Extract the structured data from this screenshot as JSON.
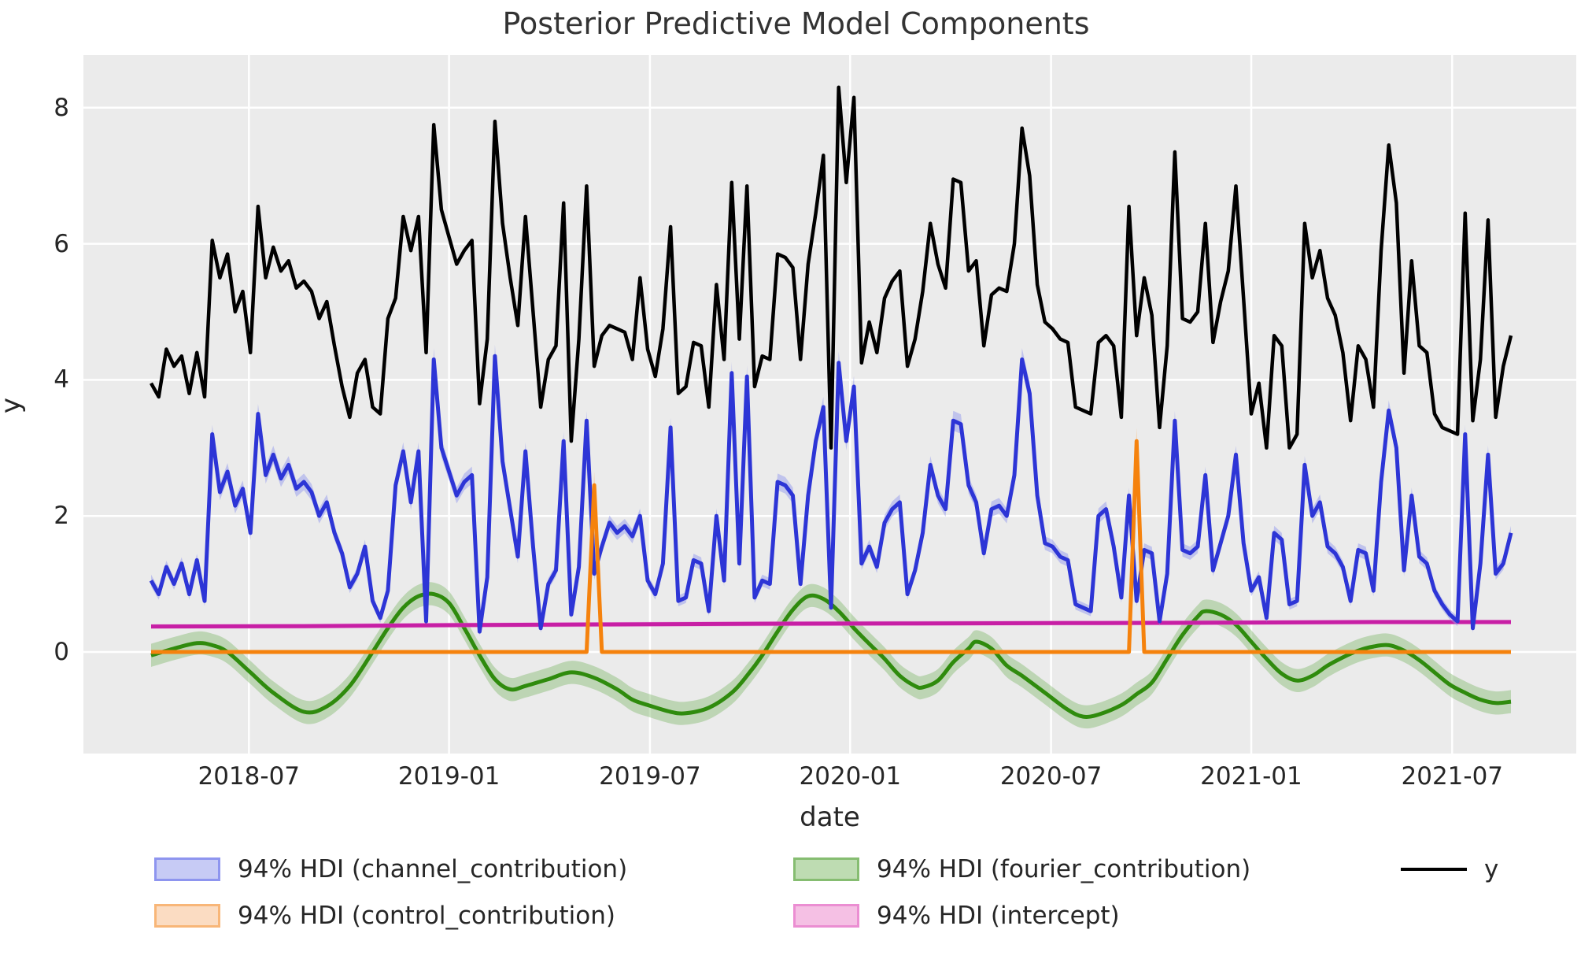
{
  "title": "Posterior Predictive Model Components",
  "axes": {
    "xlabel": "date",
    "ylabel": "y",
    "y_tick_labels": [
      "0",
      "2",
      "4",
      "6",
      "8"
    ],
    "x_tick_labels": [
      "2018-07",
      "2019-01",
      "2019-07",
      "2020-01",
      "2020-07",
      "2021-01",
      "2021-07"
    ]
  },
  "legend": [
    {
      "label": "94% HDI (channel_contribution)",
      "swatch_fill": "#c7cbf5",
      "swatch_border": "#8e95ef",
      "kind": "patch"
    },
    {
      "label": "94% HDI (control_contribution)",
      "swatch_fill": "#fbdcc2",
      "swatch_border": "#f8b678",
      "kind": "patch"
    },
    {
      "label": "94% HDI (fourier_contribution)",
      "swatch_fill": "#bedcb2",
      "swatch_border": "#86bd71",
      "kind": "patch"
    },
    {
      "label": "94% HDI (intercept)",
      "swatch_fill": "#f5c0e4",
      "swatch_border": "#eb8ed2",
      "kind": "patch"
    },
    {
      "label": "y",
      "swatch_fill": "#000000",
      "swatch_border": "#000000",
      "kind": "line"
    }
  ],
  "chart_data": {
    "type": "line",
    "title": "Posterior Predictive Model Components",
    "xlabel": "date",
    "ylabel": "y",
    "x_unit": "weeks since 2018-04-02, weekly spacing",
    "ylim": [
      -1.55,
      8.75
    ],
    "y_ticks": [
      0,
      2,
      4,
      6,
      8
    ],
    "x_ticks": [
      {
        "week": 12.8,
        "label": "2018-07"
      },
      {
        "week": 39.0,
        "label": "2019-01"
      },
      {
        "week": 65.3,
        "label": "2019-07"
      },
      {
        "week": 91.5,
        "label": "2020-01"
      },
      {
        "week": 117.8,
        "label": "2020-07"
      },
      {
        "week": 144.0,
        "label": "2021-01"
      },
      {
        "week": 170.3,
        "label": "2021-07"
      }
    ],
    "grid": true,
    "plot_background": "#ebebeb",
    "grid_color": "#ffffff",
    "series": [
      {
        "name": "fourier_contribution",
        "legend": "94% HDI (fourier_contribution)",
        "line_color": "#2f8b0d",
        "band_color": "#85bb70",
        "band_opacity": 0.45,
        "band_halfwidth": 0.17,
        "smooth": true,
        "points": [
          [
            0,
            -0.05
          ],
          [
            3,
            0.05
          ],
          [
            6,
            0.13
          ],
          [
            8,
            0.1
          ],
          [
            10,
            0
          ],
          [
            13,
            -0.3
          ],
          [
            16,
            -0.6
          ],
          [
            20,
            -0.88
          ],
          [
            23,
            -0.8
          ],
          [
            26,
            -0.5
          ],
          [
            29,
            0
          ],
          [
            31,
            0.35
          ],
          [
            33,
            0.65
          ],
          [
            35,
            0.82
          ],
          [
            37,
            0.85
          ],
          [
            39,
            0.72
          ],
          [
            41,
            0.35
          ],
          [
            43,
            -0.05
          ],
          [
            45,
            -0.4
          ],
          [
            47,
            -0.55
          ],
          [
            49,
            -0.5
          ],
          [
            52,
            -0.4
          ],
          [
            55,
            -0.3
          ],
          [
            58,
            -0.38
          ],
          [
            61,
            -0.55
          ],
          [
            63,
            -0.7
          ],
          [
            65,
            -0.78
          ],
          [
            68,
            -0.88
          ],
          [
            70,
            -0.9
          ],
          [
            73,
            -0.82
          ],
          [
            76,
            -0.6
          ],
          [
            78,
            -0.35
          ],
          [
            80,
            -0.05
          ],
          [
            82,
            0.3
          ],
          [
            84,
            0.62
          ],
          [
            86,
            0.82
          ],
          [
            88,
            0.78
          ],
          [
            90,
            0.6
          ],
          [
            92,
            0.35
          ],
          [
            94,
            0.12
          ],
          [
            96,
            -0.1
          ],
          [
            98,
            -0.35
          ],
          [
            100,
            -0.5
          ],
          [
            101,
            -0.52
          ],
          [
            103,
            -0.42
          ],
          [
            105,
            -0.15
          ],
          [
            107,
            0.05
          ],
          [
            108,
            0.15
          ],
          [
            110,
            0.05
          ],
          [
            112,
            -0.2
          ],
          [
            114,
            -0.35
          ],
          [
            117,
            -0.6
          ],
          [
            120,
            -0.85
          ],
          [
            122,
            -0.95
          ],
          [
            124,
            -0.92
          ],
          [
            127,
            -0.78
          ],
          [
            129,
            -0.62
          ],
          [
            131,
            -0.45
          ],
          [
            133,
            -0.1
          ],
          [
            135,
            0.25
          ],
          [
            137,
            0.52
          ],
          [
            138,
            0.6
          ],
          [
            140,
            0.55
          ],
          [
            142,
            0.4
          ],
          [
            144,
            0.15
          ],
          [
            146,
            -0.1
          ],
          [
            148,
            -0.32
          ],
          [
            150,
            -0.42
          ],
          [
            152,
            -0.35
          ],
          [
            154,
            -0.2
          ],
          [
            156,
            -0.08
          ],
          [
            158,
            0.02
          ],
          [
            160,
            0.08
          ],
          [
            162,
            0.1
          ],
          [
            164,
            0.02
          ],
          [
            166,
            -0.12
          ],
          [
            168,
            -0.3
          ],
          [
            170,
            -0.48
          ],
          [
            172,
            -0.6
          ],
          [
            174,
            -0.7
          ],
          [
            176,
            -0.75
          ],
          [
            178,
            -0.73
          ]
        ]
      },
      {
        "name": "intercept",
        "legend": "94% HDI (intercept)",
        "line_color": "#c71fa5",
        "band_color": "#ea86d4",
        "band_opacity": 0.5,
        "band_halfwidth": 0.035,
        "smooth": false,
        "points": [
          [
            0,
            0.375
          ],
          [
            20,
            0.38
          ],
          [
            40,
            0.395
          ],
          [
            60,
            0.405
          ],
          [
            80,
            0.415
          ],
          [
            100,
            0.42
          ],
          [
            120,
            0.425
          ],
          [
            140,
            0.43
          ],
          [
            160,
            0.44
          ],
          [
            178,
            0.44
          ]
        ]
      },
      {
        "name": "channel_contribution",
        "legend": "94% HDI (channel_contribution)",
        "line_color": "#2d35d6",
        "band_color": "#959ced",
        "band_opacity": 0.5,
        "band_halfwidth_base": 0.06,
        "band_halfwidth_per_unit": 0.025,
        "weekly_values": [
          1.05,
          0.85,
          1.25,
          1.0,
          1.3,
          0.85,
          1.35,
          0.75,
          3.2,
          2.35,
          2.65,
          2.15,
          2.4,
          1.75,
          3.5,
          2.6,
          2.9,
          2.55,
          2.75,
          2.4,
          2.5,
          2.35,
          2.0,
          2.2,
          1.75,
          1.45,
          0.95,
          1.15,
          1.55,
          0.75,
          0.5,
          0.9,
          2.45,
          2.95,
          2.2,
          2.95,
          0.45,
          4.3,
          3.0,
          2.65,
          2.3,
          2.5,
          2.6,
          0.3,
          1.1,
          4.35,
          2.8,
          2.1,
          1.4,
          2.95,
          1.55,
          0.35,
          1.0,
          1.2,
          3.1,
          0.55,
          1.25,
          3.4,
          1.15,
          1.55,
          1.9,
          1.75,
          1.85,
          1.7,
          2.0,
          1.05,
          0.85,
          1.3,
          3.3,
          0.75,
          0.8,
          1.35,
          1.3,
          0.6,
          2.0,
          1.05,
          4.1,
          1.3,
          4.05,
          0.8,
          1.05,
          1.0,
          2.5,
          2.45,
          2.3,
          1.0,
          2.3,
          3.1,
          3.6,
          0.65,
          4.25,
          3.1,
          3.9,
          1.3,
          1.55,
          1.25,
          1.9,
          2.1,
          2.2,
          0.85,
          1.2,
          1.75,
          2.75,
          2.3,
          2.1,
          3.4,
          3.35,
          2.45,
          2.2,
          1.45,
          2.1,
          2.15,
          2.0,
          2.6,
          4.3,
          3.8,
          2.3,
          1.6,
          1.55,
          1.4,
          1.35,
          0.7,
          0.65,
          0.6,
          2.0,
          2.1,
          1.55,
          0.8,
          2.3,
          0.75,
          1.5,
          1.45,
          0.45,
          1.15,
          3.4,
          1.5,
          1.45,
          1.55,
          2.6,
          1.2,
          1.6,
          2.0,
          2.9,
          1.6,
          0.9,
          1.1,
          0.5,
          1.75,
          1.65,
          0.7,
          0.75,
          2.75,
          2.0,
          2.2,
          1.55,
          1.45,
          1.25,
          0.75,
          1.5,
          1.45,
          0.9,
          2.5,
          3.55,
          3.0,
          1.2,
          2.3,
          1.4,
          1.3,
          0.9,
          0.7,
          0.55,
          0.45,
          3.2,
          0.35,
          1.3,
          2.9,
          1.15,
          1.3,
          1.75
        ]
      },
      {
        "name": "control_contribution",
        "legend": "94% HDI (control_contribution)",
        "line_color": "#f5820d",
        "band_color": "#f9b978",
        "band_opacity": 0.6,
        "baseline": 0,
        "spikes": [
          {
            "week": 58,
            "peak": 2.45,
            "band_top": 2.65,
            "band_bottom": 2.2
          },
          {
            "week": 129,
            "peak": 3.1,
            "band_top": 3.3,
            "band_bottom": 2.8
          }
        ],
        "n_weeks": 179
      },
      {
        "name": "y",
        "legend": "y",
        "line_color": "#000000",
        "weekly_values": [
          3.95,
          3.75,
          4.45,
          4.2,
          4.35,
          3.8,
          4.4,
          3.75,
          6.05,
          5.5,
          5.85,
          5.0,
          5.3,
          4.4,
          6.55,
          5.5,
          5.95,
          5.6,
          5.75,
          5.35,
          5.45,
          5.3,
          4.9,
          5.15,
          4.5,
          3.9,
          3.45,
          4.1,
          4.3,
          3.6,
          3.5,
          4.9,
          5.2,
          6.4,
          5.9,
          6.4,
          4.4,
          7.75,
          6.5,
          6.1,
          5.7,
          5.9,
          6.05,
          3.65,
          4.6,
          7.8,
          6.3,
          5.5,
          4.8,
          6.4,
          5.0,
          3.6,
          4.3,
          4.5,
          6.6,
          3.1,
          4.6,
          6.85,
          4.2,
          4.65,
          4.8,
          4.75,
          4.7,
          4.3,
          5.5,
          4.45,
          4.05,
          4.75,
          6.25,
          3.8,
          3.9,
          4.55,
          4.5,
          3.6,
          5.4,
          4.3,
          6.9,
          4.6,
          6.85,
          3.9,
          4.35,
          4.3,
          5.85,
          5.8,
          5.65,
          4.3,
          5.7,
          6.45,
          7.3,
          3.0,
          8.3,
          6.9,
          8.15,
          4.25,
          4.85,
          4.4,
          5.2,
          5.45,
          5.6,
          4.2,
          4.6,
          5.3,
          6.3,
          5.7,
          5.35,
          6.95,
          6.9,
          5.6,
          5.75,
          4.5,
          5.25,
          5.35,
          5.3,
          6.0,
          7.7,
          7.0,
          5.4,
          4.85,
          4.75,
          4.6,
          4.55,
          3.6,
          3.55,
          3.5,
          4.55,
          4.65,
          4.5,
          3.45,
          6.55,
          4.65,
          5.5,
          4.95,
          3.3,
          4.5,
          7.35,
          4.9,
          4.85,
          5.0,
          6.3,
          4.55,
          5.15,
          5.6,
          6.85,
          5.2,
          3.5,
          3.95,
          3.0,
          4.65,
          4.5,
          3.0,
          3.2,
          6.3,
          5.5,
          5.9,
          5.2,
          4.95,
          4.4,
          3.4,
          4.5,
          4.3,
          3.6,
          5.9,
          7.45,
          6.6,
          4.1,
          5.75,
          4.5,
          4.4,
          3.5,
          3.3,
          3.25,
          3.2,
          6.45,
          3.4,
          4.3,
          6.35,
          3.45,
          4.2,
          4.65
        ]
      }
    ]
  }
}
